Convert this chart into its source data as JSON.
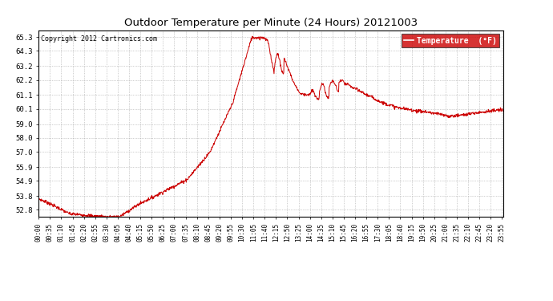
{
  "title": "Outdoor Temperature per Minute (24 Hours) 20121003",
  "copyright": "Copyright 2012 Cartronics.com",
  "legend_label": "Temperature  (°F)",
  "line_color": "#cc0000",
  "background_color": "#ffffff",
  "grid_color": "#aaaaaa",
  "yticks": [
    52.8,
    53.8,
    54.9,
    55.9,
    57.0,
    58.0,
    59.0,
    60.1,
    61.1,
    62.2,
    63.2,
    64.3,
    65.3
  ],
  "ylim": [
    52.3,
    65.8
  ],
  "xlim": [
    0,
    1439
  ]
}
